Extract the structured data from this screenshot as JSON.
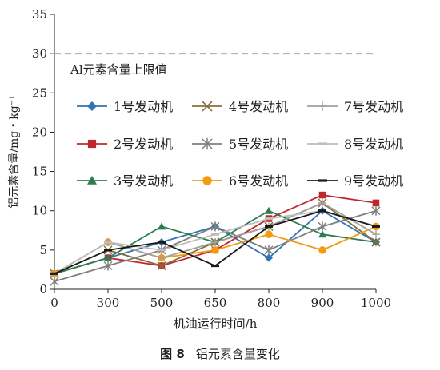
{
  "figure": {
    "caption_number": "图 8",
    "caption_text": "铝元素含量变化"
  },
  "chart_data": {
    "type": "line",
    "xlabel": "机油运行时间/h",
    "ylabel": "铝元素含量/mg・kg⁻¹",
    "categories": [
      "0",
      "300",
      "500",
      "650",
      "800",
      "900",
      "1000"
    ],
    "ylim": [
      0,
      35
    ],
    "yticks": [
      0,
      5,
      10,
      15,
      20,
      25,
      30,
      35
    ],
    "grid": false,
    "legend_placement": "inside-center, 3 columns",
    "limit_line": {
      "value": 30,
      "label": "Al元素含量上限值",
      "color": "#a7a9ac"
    },
    "series": [
      {
        "name": "1号发动机",
        "color": "#2e75b6",
        "marker": "diamond",
        "values": [
          2,
          4,
          6,
          8,
          4,
          10,
          6
        ]
      },
      {
        "name": "2号发动机",
        "color": "#c0272d",
        "marker": "square",
        "values": [
          2,
          4,
          3,
          5,
          9,
          12,
          11
        ]
      },
      {
        "name": "3号发动机",
        "color": "#2e7d4f",
        "marker": "triangle",
        "values": [
          2,
          4,
          8,
          6,
          10,
          7,
          6
        ]
      },
      {
        "name": "4号发动机",
        "color": "#8a6d3b",
        "marker": "x",
        "values": [
          2,
          5,
          3,
          6,
          8,
          11,
          6
        ]
      },
      {
        "name": "5号发动机",
        "color": "#7f7f7f",
        "marker": "star",
        "values": [
          1,
          3,
          5,
          8,
          5,
          8,
          10
        ]
      },
      {
        "name": "6号发动机",
        "color": "#f39c12",
        "marker": "circle",
        "values": [
          2,
          6,
          4,
          5,
          7,
          5,
          8
        ]
      },
      {
        "name": "7号发动机",
        "color": "#a0a0a0",
        "marker": "plus",
        "values": [
          2,
          6,
          4,
          6,
          8,
          11,
          7
        ]
      },
      {
        "name": "8号发动机",
        "color": "#bdbdbd",
        "marker": "dash",
        "values": [
          2,
          6,
          5,
          7,
          9,
          10,
          8
        ]
      },
      {
        "name": "9号发动机",
        "color": "#1a1a1a",
        "marker": "dash",
        "values": [
          2,
          5,
          6,
          3,
          8,
          10,
          8
        ]
      }
    ]
  }
}
